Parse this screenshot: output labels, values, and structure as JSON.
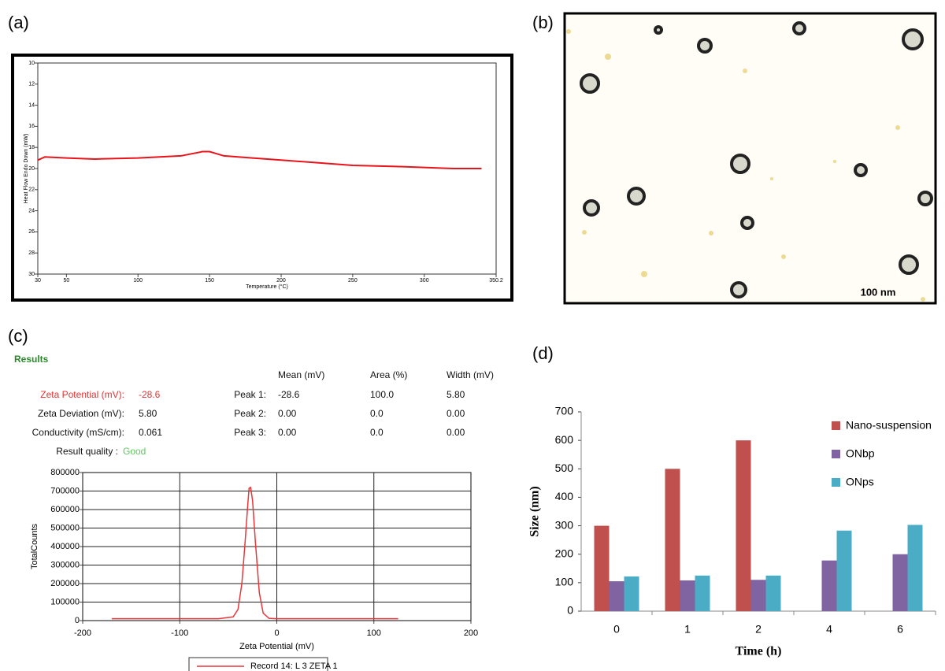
{
  "panel_labels": [
    "(a)",
    "(b)",
    "(c)",
    "(d)"
  ],
  "image": {
    "scale_bar": "100 nm"
  },
  "results": {
    "title": "Results",
    "summary": [
      [
        "Zeta Potential (mV):",
        "-28.6"
      ],
      [
        "Zeta Deviation (mV):",
        "5.80"
      ],
      [
        "Conductivity (mS/cm):",
        "0.061"
      ]
    ],
    "quality_label": "Result quality :",
    "quality": "Good",
    "headers": [
      "Mean (mV)",
      "Area (%)",
      "Width (mV)"
    ],
    "rows": [
      [
        "Peak 1:",
        "-28.6",
        "100.0",
        "5.80"
      ],
      [
        "Peak 2:",
        "0.00",
        "0.0",
        "0.00"
      ],
      [
        "Peak 3:",
        "0.00",
        "0.0",
        "0.00"
      ]
    ]
  },
  "chart_data": [
    {
      "type": "line",
      "x_label": "Temperature (°C)",
      "y_label": "Heat Flow Endo Down (mW)",
      "xlim": [
        30,
        350.2
      ],
      "xticks": [
        30,
        50,
        100,
        150,
        200,
        250,
        300,
        350.2
      ],
      "ylim": [
        10,
        30
      ],
      "yticks": [
        10,
        12,
        14,
        16,
        18,
        20,
        22,
        24,
        26,
        28,
        30
      ],
      "y_inverted": true,
      "grid": false,
      "series": [
        {
          "color": "#e8141b",
          "x": [
            30,
            35,
            50,
            70,
            100,
            130,
            145,
            150,
            160,
            180,
            200,
            230,
            250,
            280,
            300,
            320,
            340
          ],
          "values": [
            19.2,
            18.9,
            19.0,
            19.1,
            19.0,
            18.8,
            18.4,
            18.4,
            18.8,
            19.0,
            19.2,
            19.5,
            19.7,
            19.8,
            19.9,
            20.0,
            20.0
          ]
        }
      ]
    },
    {
      "type": "line",
      "x_label": "Zeta Potential (mV)",
      "y_label": "TotalCounts",
      "xlim": [
        -200,
        200
      ],
      "xticks": [
        -200,
        -100,
        0,
        100,
        200
      ],
      "ylim": [
        0,
        800000
      ],
      "yticks": [
        0,
        100000,
        200000,
        300000,
        400000,
        500000,
        600000,
        700000,
        800000
      ],
      "grid": true,
      "legend": "bottom",
      "series": [
        {
          "name": "Record 14: L 3 ZETA 1",
          "color": "#e8373a",
          "x": [
            -170,
            -60,
            -45,
            -40,
            -36,
            -33,
            -30,
            -28.6,
            -27,
            -25,
            -22,
            -18,
            -14,
            -8,
            0,
            125
          ],
          "values": [
            10000,
            10000,
            20000,
            60000,
            200000,
            400000,
            620000,
            715000,
            720000,
            650000,
            420000,
            150000,
            40000,
            12000,
            10000,
            10000
          ]
        }
      ]
    },
    {
      "type": "bar",
      "x_label": "Time (h)",
      "y_label": "Size (nm)",
      "categories": [
        "0",
        "1",
        "2",
        "4",
        "6"
      ],
      "ylim": [
        0,
        700
      ],
      "yticks": [
        0,
        100,
        200,
        300,
        400,
        500,
        600,
        700
      ],
      "legend": "right",
      "series": [
        {
          "name": "Nano-suspension",
          "color": "#c0504d",
          "values": [
            300,
            500,
            600,
            null,
            null
          ]
        },
        {
          "name": "ONbp",
          "color": "#8064a2",
          "values": [
            105,
            108,
            110,
            178,
            200
          ]
        },
        {
          "name": "ONps",
          "color": "#4bacc6",
          "values": [
            122,
            125,
            125,
            283,
            303
          ]
        }
      ]
    }
  ]
}
